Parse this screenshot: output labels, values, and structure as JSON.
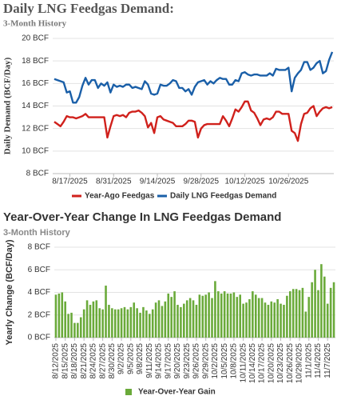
{
  "chart_data": [
    {
      "type": "line",
      "title": "Daily LNG Feedgas Demand:",
      "subtitle": "3-Month History",
      "y_label": "Daily Demand (BCF/Day)",
      "categories": [
        null,
        null,
        null,
        null,
        null,
        "8/17/2025",
        null,
        null,
        null,
        null,
        null,
        null,
        null,
        null,
        null,
        null,
        null,
        null,
        null,
        "8/31/2025",
        null,
        null,
        null,
        null,
        null,
        null,
        null,
        null,
        null,
        null,
        null,
        null,
        null,
        "9/14/2025",
        null,
        null,
        null,
        null,
        null,
        null,
        null,
        null,
        null,
        null,
        null,
        null,
        null,
        "9/28/2025",
        null,
        null,
        null,
        null,
        null,
        null,
        null,
        null,
        null,
        null,
        null,
        null,
        null,
        "10/12/2025",
        null,
        null,
        null,
        null,
        null,
        null,
        null,
        null,
        null,
        null,
        null,
        null,
        null,
        "10/26/2025",
        null,
        null,
        null,
        null,
        null,
        null,
        null,
        null,
        null,
        null,
        null,
        null,
        null,
        null
      ],
      "series": [
        {
          "name": "Year-Ago Feedgas",
          "color": "#d0211c",
          "values": [
            12.6,
            12.4,
            12.2,
            12.6,
            13.1,
            13.0,
            13.0,
            12.9,
            13.0,
            13.1,
            13.3,
            13.0,
            13.0,
            13.0,
            13.0,
            13.0,
            13.0,
            11.2,
            12.2,
            13.1,
            13.2,
            13.1,
            13.2,
            13.0,
            13.4,
            13.5,
            13.5,
            13.6,
            13.4,
            13.1,
            12.1,
            12.5,
            11.6,
            13.0,
            13.1,
            12.8,
            12.7,
            12.6,
            12.5,
            12.2,
            12.2,
            12.2,
            12.4,
            12.7,
            12.7,
            12.6,
            11.2,
            12.0,
            12.3,
            12.4,
            12.4,
            12.4,
            12.4,
            12.4,
            13.1,
            12.7,
            12.2,
            12.9,
            13.7,
            13.5,
            13.9,
            14.4,
            14.4,
            13.6,
            13.4,
            12.9,
            12.3,
            12.8,
            12.9,
            12.8,
            13.0,
            13.5,
            13.5,
            13.3,
            13.3,
            13.3,
            11.8,
            11.6,
            10.9,
            12.4,
            13.3,
            13.4,
            13.8,
            14.0,
            13.1,
            13.5,
            13.8,
            13.9,
            13.8,
            13.9
          ]
        },
        {
          "name": "Daily LNG Feedgas Demand",
          "color": "#1a5fa8",
          "values": [
            16.4,
            16.3,
            16.2,
            16.1,
            15.2,
            15.3,
            14.3,
            14.3,
            14.8,
            15.8,
            16.5,
            15.9,
            16.3,
            16.3,
            15.6,
            16.0,
            15.8,
            16.1,
            15.2,
            15.9,
            15.7,
            15.8,
            15.7,
            15.9,
            15.9,
            15.6,
            15.7,
            15.6,
            15.5,
            16.2,
            15.9,
            15.1,
            15.0,
            15.1,
            15.9,
            15.8,
            15.8,
            16.0,
            16.3,
            16.2,
            15.6,
            15.6,
            15.3,
            15.5,
            15.0,
            15.7,
            16.1,
            16.2,
            16.3,
            15.9,
            16.2,
            16.0,
            16.3,
            16.5,
            16.4,
            16.4,
            15.9,
            15.9,
            16.3,
            16.2,
            16.9,
            17.0,
            16.8,
            16.7,
            16.8,
            16.8,
            16.7,
            16.7,
            16.7,
            16.9,
            16.7,
            17.3,
            17.2,
            17.2,
            17.2,
            17.4,
            15.3,
            16.5,
            16.9,
            17.2,
            17.9,
            17.9,
            17.2,
            17.4,
            17.8,
            18.0,
            16.9,
            17.1,
            18.1,
            18.8
          ]
        }
      ],
      "ylim": [
        8,
        20
      ],
      "yticks": [
        {
          "value": 8,
          "label": "8 BCF"
        },
        {
          "value": 10,
          "label": "10 BCF"
        },
        {
          "value": 12,
          "label": "12 BCF"
        },
        {
          "value": 14,
          "label": "14 BCF"
        },
        {
          "value": 16,
          "label": "16 BCF"
        },
        {
          "value": 18,
          "label": "18 BCF"
        },
        {
          "value": 20,
          "label": "20 BCF"
        }
      ],
      "grid": true
    },
    {
      "type": "bar",
      "title": "Year-Over-Year Change In LNG Feedgas Demand",
      "subtitle": "3-Month History",
      "y_label": "Yearly Change (BCF/Day)",
      "categories": [
        "8/12/2025",
        null,
        null,
        "8/15/2025",
        null,
        null,
        "8/18/2025",
        null,
        null,
        "8/21/2025",
        null,
        null,
        "8/24/2025",
        null,
        null,
        "8/27/2025",
        null,
        null,
        "8/30/2025",
        null,
        null,
        "9/2/2025",
        null,
        null,
        "9/5/2025",
        null,
        null,
        "9/8/2025",
        null,
        null,
        "9/11/2025",
        null,
        null,
        "9/14/2025",
        null,
        null,
        "9/17/2025",
        null,
        null,
        "9/20/2025",
        null,
        null,
        "9/23/2025",
        null,
        null,
        "9/26/2025",
        null,
        null,
        "9/29/2025",
        null,
        null,
        "10/2/2025",
        null,
        null,
        "10/5/2025",
        null,
        null,
        "10/8/2025",
        null,
        null,
        "10/11/2025",
        null,
        null,
        "10/14/2025",
        null,
        null,
        "10/17/2025",
        null,
        null,
        "10/20/2025",
        null,
        null,
        "10/23/2025",
        null,
        null,
        "10/26/2025",
        null,
        null,
        "10/29/2025",
        null,
        null,
        "11/1/2025",
        null,
        null,
        "11/4/2025",
        null,
        null,
        "11/7/2025",
        null,
        null
      ],
      "series": [
        {
          "name": "Year-Over-Year Gain",
          "color": "#6aaa3a",
          "values": [
            3.8,
            3.9,
            4.0,
            3.2,
            2.1,
            2.2,
            1.3,
            1.3,
            1.8,
            2.5,
            3.3,
            2.9,
            3.2,
            3.3,
            2.6,
            2.5,
            4.6,
            2.9,
            2.6,
            2.5,
            2.5,
            2.6,
            2.7,
            2.5,
            2.7,
            3.1,
            2.6,
            2.2,
            2.7,
            2.4,
            2.1,
            2.5,
            3.1,
            3.3,
            2.8,
            3.2,
            3.9,
            3.6,
            4.1,
            2.9,
            2.7,
            3.0,
            3.3,
            3.5,
            3.3,
            2.9,
            3.8,
            3.7,
            3.8,
            4.0,
            3.5,
            5.0,
            4.1,
            3.9,
            4.1,
            3.9,
            3.9,
            4.0,
            3.6,
            3.8,
            3.0,
            3.1,
            3.4,
            4.1,
            3.8,
            3.5,
            3.5,
            3.1,
            2.9,
            3.2,
            3.1,
            3.4,
            3.0,
            2.9,
            3.7,
            4.1,
            4.3,
            4.3,
            4.2,
            4.4,
            2.3,
            3.6,
            4.9,
            6.0,
            4.2,
            6.5,
            5.4,
            3.0,
            4.4,
            4.9
          ]
        }
      ],
      "ylim": [
        0,
        8
      ],
      "yticks": [
        {
          "value": 0,
          "label": "0 BCF"
        },
        {
          "value": 2,
          "label": "2 BCF"
        },
        {
          "value": 4,
          "label": "4 BCF"
        },
        {
          "value": 6,
          "label": "6 BCF"
        },
        {
          "value": 8,
          "label": "8 BCF"
        }
      ],
      "grid": true
    }
  ]
}
